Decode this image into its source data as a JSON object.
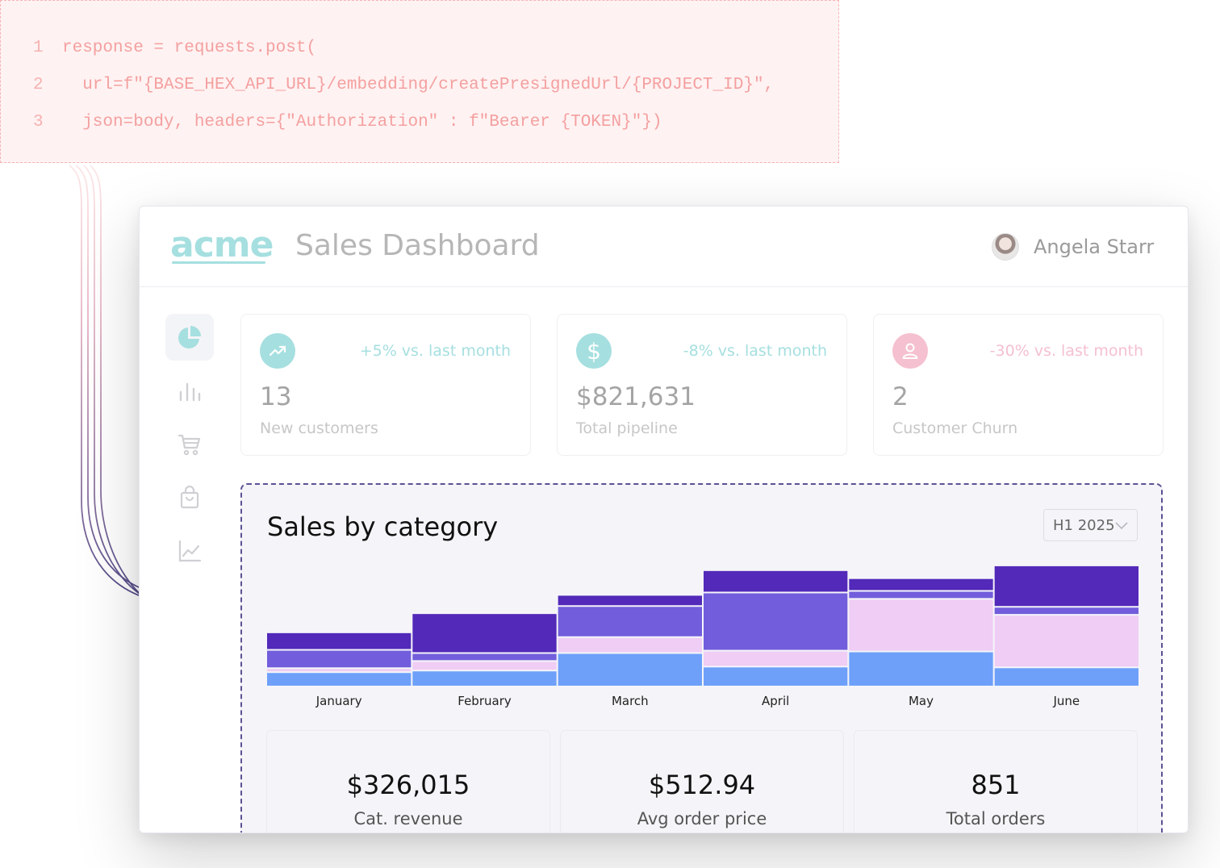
{
  "code": {
    "lines": [
      {
        "number": "1",
        "text": "response = requests.post("
      },
      {
        "number": "2",
        "text": "  url=f\"{BASE_HEX_API_URL}/embedding/createPresignedUrl/{PROJECT_ID}\","
      },
      {
        "number": "3",
        "text": "  json=body, headers={\"Authorization\" : f\"Bearer {TOKEN}\"})"
      }
    ]
  },
  "header": {
    "logo": "acme",
    "title": "Sales Dashboard",
    "user_name": "Angela Starr"
  },
  "sidebar": {
    "items": [
      {
        "icon": "pie-chart-icon",
        "active": true
      },
      {
        "icon": "bar-chart-icon",
        "active": false
      },
      {
        "icon": "shopping-cart-icon",
        "active": false
      },
      {
        "icon": "shopping-bag-icon",
        "active": false
      },
      {
        "icon": "line-chart-icon",
        "active": false
      }
    ]
  },
  "kpis": [
    {
      "icon": "trending-up-icon",
      "delta": "+5% vs. last month",
      "value": "13",
      "label": "New customers",
      "accent": "#a6dfe0",
      "delta_color": "#a6dfe0"
    },
    {
      "icon": "dollar-icon",
      "delta": "-8% vs. last month",
      "value": "$821,631",
      "label": "Total pipeline",
      "accent": "#a6dfe0",
      "delta_color": "#a6dfe0"
    },
    {
      "icon": "user-icon",
      "delta": "-30% vs. last month",
      "value": "2",
      "label": "Customer Churn",
      "accent": "#f5c0cf",
      "delta_color": "#f5c0cf"
    }
  ],
  "sales": {
    "title": "Sales by category",
    "period": "H1 2025"
  },
  "chart_data": {
    "type": "bar",
    "stacked": true,
    "categories": [
      "January",
      "February",
      "March",
      "April",
      "May",
      "June"
    ],
    "series": [
      {
        "color": "#6ea0fa",
        "values": [
          18,
          20,
          42,
          25,
          44,
          24
        ]
      },
      {
        "color": "#efcdf4",
        "values": [
          5,
          12,
          20,
          20,
          66,
          66
        ]
      },
      {
        "color": "#725ddc",
        "values": [
          23,
          10,
          39,
          73,
          10,
          10
        ]
      },
      {
        "color": "#5229b9",
        "values": [
          22,
          50,
          14,
          28,
          16,
          52
        ]
      }
    ],
    "ylim": [
      0,
      160
    ],
    "grid": false,
    "legend": "none"
  },
  "stats": [
    {
      "value": "$326,015",
      "label": "Cat. revenue"
    },
    {
      "value": "$512.94",
      "label": "Avg order price"
    },
    {
      "value": "851",
      "label": "Total orders"
    }
  ],
  "colors": {
    "teal": "#a6dfe0",
    "pink": "#f5c0cf",
    "code_text": "#f4a0a0",
    "connector": "#4a4586"
  }
}
